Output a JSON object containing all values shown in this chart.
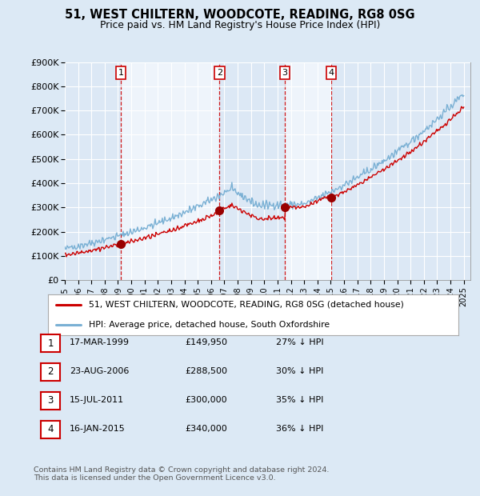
{
  "title": "51, WEST CHILTERN, WOODCOTE, READING, RG8 0SG",
  "subtitle": "Price paid vs. HM Land Registry's House Price Index (HPI)",
  "ylim": [
    0,
    900000
  ],
  "yticks": [
    0,
    100000,
    200000,
    300000,
    400000,
    500000,
    600000,
    700000,
    800000,
    900000
  ],
  "ytick_labels": [
    "£0",
    "£100K",
    "£200K",
    "£300K",
    "£400K",
    "£500K",
    "£600K",
    "£700K",
    "£800K",
    "£900K"
  ],
  "sales": [
    {
      "year": 1999.21,
      "price": 149950,
      "label": "1"
    },
    {
      "year": 2006.64,
      "price": 288500,
      "label": "2"
    },
    {
      "year": 2011.54,
      "price": 300000,
      "label": "3"
    },
    {
      "year": 2015.04,
      "price": 340000,
      "label": "4"
    }
  ],
  "sale_color": "#cc0000",
  "hpi_color": "#7ab0d4",
  "legend_entries": [
    "51, WEST CHILTERN, WOODCOTE, READING, RG8 0SG (detached house)",
    "HPI: Average price, detached house, South Oxfordshire"
  ],
  "table_rows": [
    {
      "num": "1",
      "date": "17-MAR-1999",
      "price": "£149,950",
      "hpi": "27% ↓ HPI"
    },
    {
      "num": "2",
      "date": "23-AUG-2006",
      "price": "£288,500",
      "hpi": "30% ↓ HPI"
    },
    {
      "num": "3",
      "date": "15-JUL-2011",
      "price": "£300,000",
      "hpi": "35% ↓ HPI"
    },
    {
      "num": "4",
      "date": "16-JAN-2015",
      "price": "£340,000",
      "hpi": "36% ↓ HPI"
    }
  ],
  "footnote": "Contains HM Land Registry data © Crown copyright and database right 2024.\nThis data is licensed under the Open Government Licence v3.0.",
  "background_color": "#dce9f5",
  "plot_bg": "#e8f0f8",
  "band_light": "#dce8f5",
  "band_white": "#eef4fb",
  "grid_color": "#ffffff",
  "vline_color": "#cc0000",
  "sale_dot_color": "#990000"
}
